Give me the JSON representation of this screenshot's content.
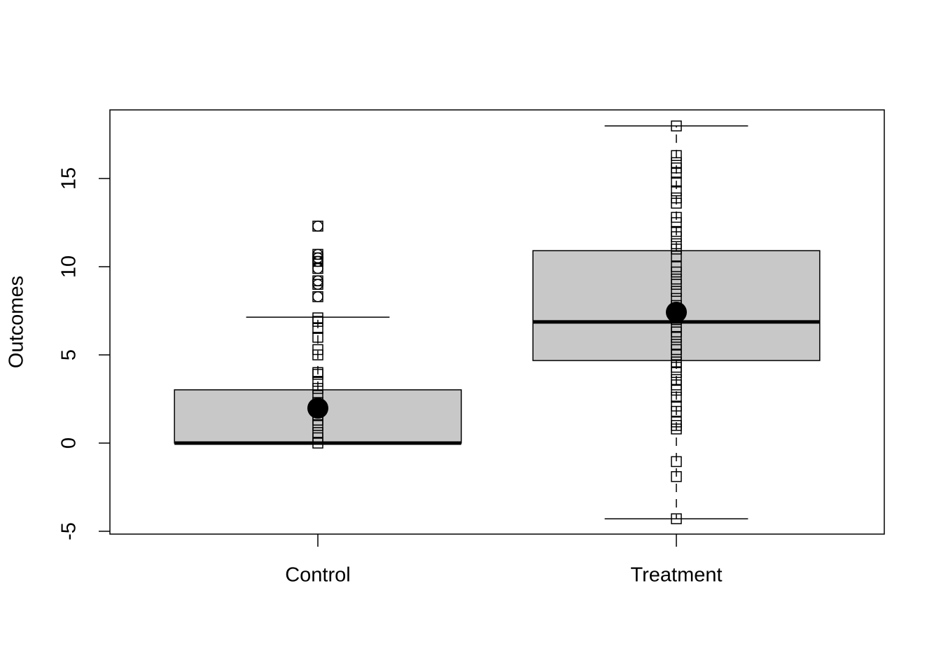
{
  "chart_data": {
    "type": "box",
    "y_label": "Outcomes",
    "categories": [
      "Control",
      "Treatment"
    ],
    "ylim": [
      -5.16,
      18.89
    ],
    "yticks": [
      -5,
      0,
      5,
      10,
      15
    ],
    "box_color": "#c8c8c8",
    "boxes": [
      {
        "whisker_low": 0,
        "q1": 0,
        "median": 0,
        "q3": 3.02,
        "whisker_high": 7.14,
        "mean": 1.98,
        "outliers": [
          8.3,
          9.0,
          9.2,
          9.9,
          10.3,
          10.5,
          10.7,
          12.3
        ],
        "points": [
          0,
          0.3,
          0.6,
          1.0,
          1.3,
          1.6,
          2.0,
          2.3,
          2.7,
          3.1,
          3.5,
          3.9,
          4.0,
          5.0,
          5.3,
          6.0,
          6.5,
          6.9,
          7.1,
          8.3,
          9.0,
          9.2,
          9.9,
          10.3,
          10.5,
          10.7,
          12.3
        ]
      },
      {
        "whisker_low": -4.29,
        "q1": 4.68,
        "median": 6.87,
        "q3": 10.91,
        "whisker_high": 17.98,
        "mean": 7.42,
        "outliers": [],
        "points": [
          -4.29,
          -1.9,
          -1.05,
          0.8,
          1.0,
          1.2,
          1.8,
          2.1,
          2.6,
          3.0,
          3.3,
          3.6,
          4.0,
          4.3,
          4.6,
          5.0,
          5.3,
          5.6,
          6.0,
          6.3,
          6.6,
          7.0,
          7.4,
          7.8,
          8.2,
          8.6,
          9.0,
          9.3,
          9.7,
          10.0,
          10.6,
          11.0,
          11.3,
          11.7,
          12.0,
          12.5,
          12.8,
          13.6,
          13.9,
          14.3,
          14.8,
          15.3,
          15.6,
          15.9,
          16.3,
          17.98
        ]
      }
    ]
  }
}
